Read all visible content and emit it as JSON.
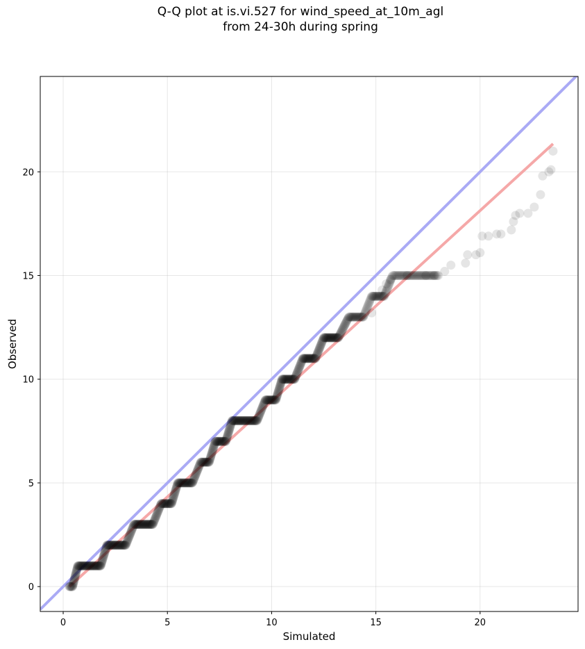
{
  "chart_data": {
    "type": "scatter",
    "title_lines": [
      "Q-Q plot at is.vi.527 for wind_speed_at_10m_agl",
      "from 24-30h during spring"
    ],
    "xlabel": "Simulated",
    "ylabel": "Observed",
    "xlim": [
      -1.1,
      24.7
    ],
    "ylim": [
      -1.2,
      24.6
    ],
    "x_ticks": [
      0,
      5,
      10,
      15,
      20
    ],
    "y_ticks": [
      0,
      5,
      10,
      15,
      20
    ],
    "grid": true,
    "colors": {
      "identity_line": "#aaaaf5",
      "fit_line": "#f5a8a8",
      "points": "#000000"
    },
    "identity_line": {
      "x": [
        -1.1,
        24.7
      ],
      "y": [
        -1.1,
        24.7
      ]
    },
    "fit_line": {
      "x": [
        0.3,
        23.5
      ],
      "y": [
        0.0,
        21.35
      ]
    },
    "steps": [
      {
        "y": 0,
        "x_start": 0.3,
        "x_end": 0.45
      },
      {
        "y": 1,
        "x_start": 0.7,
        "x_end": 1.8
      },
      {
        "y": 2,
        "x_start": 2.1,
        "x_end": 3.0
      },
      {
        "y": 3,
        "x_start": 3.4,
        "x_end": 4.3
      },
      {
        "y": 4,
        "x_start": 4.7,
        "x_end": 5.2
      },
      {
        "y": 5,
        "x_start": 5.5,
        "x_end": 6.2
      },
      {
        "y": 6,
        "x_start": 6.6,
        "x_end": 7.0
      },
      {
        "y": 7,
        "x_start": 7.3,
        "x_end": 7.8
      },
      {
        "y": 8,
        "x_start": 8.1,
        "x_end": 9.3
      },
      {
        "y": 9,
        "x_start": 9.7,
        "x_end": 10.2
      },
      {
        "y": 10,
        "x_start": 10.5,
        "x_end": 11.1
      },
      {
        "y": 11,
        "x_start": 11.5,
        "x_end": 12.1
      },
      {
        "y": 12,
        "x_start": 12.5,
        "x_end": 13.2
      },
      {
        "y": 13,
        "x_start": 13.7,
        "x_end": 14.4
      },
      {
        "y": 14,
        "x_start": 14.8,
        "x_end": 15.4
      },
      {
        "y": 15,
        "x_start": 15.8,
        "x_end": 18.0
      }
    ],
    "tail_points": [
      [
        14.8,
        13.2
      ],
      [
        15.3,
        14.3
      ],
      [
        15.5,
        14.6
      ],
      [
        15.7,
        14.8
      ],
      [
        16.5,
        15.0
      ],
      [
        17.4,
        15.0
      ],
      [
        17.8,
        15.0
      ],
      [
        18.3,
        15.2
      ],
      [
        18.6,
        15.5
      ],
      [
        19.3,
        15.6
      ],
      [
        19.4,
        16.0
      ],
      [
        19.8,
        16.0
      ],
      [
        20.0,
        16.1
      ],
      [
        20.1,
        16.9
      ],
      [
        20.4,
        16.9
      ],
      [
        20.8,
        17.0
      ],
      [
        21.0,
        17.0
      ],
      [
        21.5,
        17.2
      ],
      [
        21.6,
        17.6
      ],
      [
        21.7,
        17.9
      ],
      [
        21.9,
        18.0
      ],
      [
        22.3,
        18.0
      ],
      [
        22.6,
        18.3
      ],
      [
        22.9,
        18.9
      ],
      [
        23.0,
        19.8
      ],
      [
        23.3,
        20.0
      ],
      [
        23.4,
        20.1
      ],
      [
        23.5,
        21.0
      ]
    ]
  }
}
